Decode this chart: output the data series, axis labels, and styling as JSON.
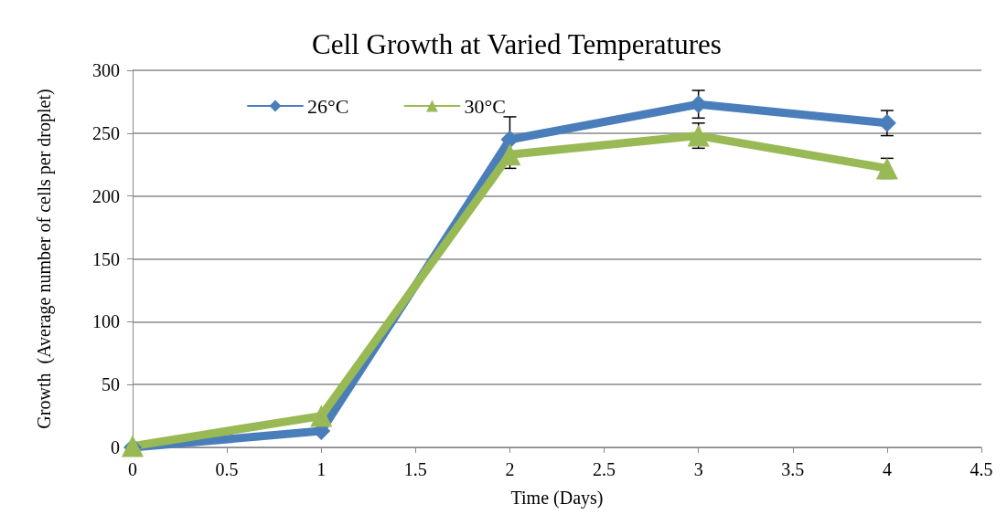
{
  "chart_data": {
    "type": "line",
    "title": "Cell Growth at Varied Temperatures",
    "xlabel": "Time (Days)",
    "ylabel": "Growth  (Average number of cells per droplet)",
    "x": [
      0,
      1,
      2,
      3,
      4
    ],
    "series": [
      {
        "name": "26°C",
        "color": "#4a7ebb",
        "marker": "diamond",
        "values": [
          0,
          13,
          245,
          273,
          258
        ],
        "errors": [
          null,
          null,
          18,
          11,
          10
        ]
      },
      {
        "name": "30°C",
        "color": "#98b954",
        "marker": "triangle",
        "values": [
          1,
          25,
          233,
          248,
          222
        ],
        "errors": [
          null,
          null,
          11,
          10,
          8
        ]
      }
    ],
    "xlim": [
      0,
      4.5
    ],
    "xticks": [
      0,
      0.5,
      1,
      1.5,
      2,
      2.5,
      3,
      3.5,
      4,
      4.5
    ],
    "ylim": [
      0,
      300
    ],
    "yticks": [
      0,
      50,
      100,
      150,
      200,
      250,
      300
    ],
    "grid": "y",
    "legend": "top left",
    "line_style": "solid"
  }
}
